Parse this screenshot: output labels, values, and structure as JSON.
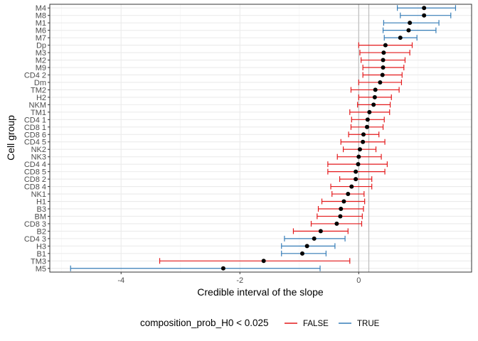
{
  "chart_data": {
    "type": "forest",
    "xlabel": "Credible interval of the slope",
    "ylabel": "Cell group",
    "xlim": [
      -5.2,
      1.9
    ],
    "x_ticks": [
      -4,
      -2,
      0
    ],
    "reference_lines": [
      0,
      0.17
    ],
    "grid": true,
    "legend": {
      "title": "composition_prob_H0 < 0.025",
      "position": "bottom",
      "entries": [
        {
          "label": "FALSE",
          "color": "#E41A1C"
        },
        {
          "label": "TRUE",
          "color": "#377EB8"
        }
      ]
    },
    "categories": [
      "M4",
      "M8",
      "M1",
      "M6",
      "M7",
      "Dp",
      "M3",
      "M2",
      "M9",
      "CD4 2",
      "Dm",
      "TM2",
      "H2",
      "NKM",
      "TM1",
      "CD4 1",
      "CD8 1",
      "CD8 6",
      "CD4 5",
      "NK2",
      "NK3",
      "CD4 4",
      "CD8 5",
      "CD8 2",
      "CD8 4",
      "NK1",
      "H1",
      "B3",
      "BM",
      "CD8 3",
      "B2",
      "CD4 3",
      "H3",
      "B1",
      "TM3",
      "M5"
    ],
    "points": [
      {
        "group": "M4",
        "estimate": 1.1,
        "lower": 0.65,
        "upper": 1.63,
        "significant": "TRUE"
      },
      {
        "group": "M8",
        "estimate": 1.1,
        "lower": 0.7,
        "upper": 1.55,
        "significant": "TRUE"
      },
      {
        "group": "M1",
        "estimate": 0.86,
        "lower": 0.42,
        "upper": 1.35,
        "significant": "TRUE"
      },
      {
        "group": "M6",
        "estimate": 0.84,
        "lower": 0.41,
        "upper": 1.3,
        "significant": "TRUE"
      },
      {
        "group": "M7",
        "estimate": 0.7,
        "lower": 0.43,
        "upper": 0.98,
        "significant": "TRUE"
      },
      {
        "group": "Dp",
        "estimate": 0.45,
        "lower": 0.0,
        "upper": 0.9,
        "significant": "FALSE"
      },
      {
        "group": "M3",
        "estimate": 0.42,
        "lower": 0.02,
        "upper": 0.86,
        "significant": "FALSE"
      },
      {
        "group": "M2",
        "estimate": 0.41,
        "lower": 0.04,
        "upper": 0.78,
        "significant": "FALSE"
      },
      {
        "group": "M9",
        "estimate": 0.41,
        "lower": 0.07,
        "upper": 0.76,
        "significant": "FALSE"
      },
      {
        "group": "CD4 2",
        "estimate": 0.4,
        "lower": 0.07,
        "upper": 0.73,
        "significant": "FALSE"
      },
      {
        "group": "Dm",
        "estimate": 0.36,
        "lower": 0.0,
        "upper": 0.72,
        "significant": "FALSE"
      },
      {
        "group": "TM2",
        "estimate": 0.28,
        "lower": -0.13,
        "upper": 0.68,
        "significant": "FALSE"
      },
      {
        "group": "H2",
        "estimate": 0.27,
        "lower": 0.0,
        "upper": 0.55,
        "significant": "FALSE"
      },
      {
        "group": "NKM",
        "estimate": 0.25,
        "lower": -0.02,
        "upper": 0.53,
        "significant": "FALSE"
      },
      {
        "group": "TM1",
        "estimate": 0.18,
        "lower": -0.15,
        "upper": 0.52,
        "significant": "FALSE"
      },
      {
        "group": "CD4 1",
        "estimate": 0.15,
        "lower": -0.12,
        "upper": 0.43,
        "significant": "FALSE"
      },
      {
        "group": "CD8 1",
        "estimate": 0.14,
        "lower": -0.13,
        "upper": 0.41,
        "significant": "FALSE"
      },
      {
        "group": "CD8 6",
        "estimate": 0.08,
        "lower": -0.17,
        "upper": 0.34,
        "significant": "FALSE"
      },
      {
        "group": "CD4 5",
        "estimate": 0.07,
        "lower": -0.3,
        "upper": 0.44,
        "significant": "FALSE"
      },
      {
        "group": "NK2",
        "estimate": 0.02,
        "lower": -0.26,
        "upper": 0.29,
        "significant": "FALSE"
      },
      {
        "group": "NK3",
        "estimate": 0.0,
        "lower": -0.36,
        "upper": 0.38,
        "significant": "FALSE"
      },
      {
        "group": "CD4 4",
        "estimate": -0.01,
        "lower": -0.52,
        "upper": 0.48,
        "significant": "FALSE"
      },
      {
        "group": "CD8 5",
        "estimate": -0.05,
        "lower": -0.52,
        "upper": 0.44,
        "significant": "FALSE"
      },
      {
        "group": "CD8 2",
        "estimate": -0.05,
        "lower": -0.32,
        "upper": 0.22,
        "significant": "FALSE"
      },
      {
        "group": "CD8 4",
        "estimate": -0.12,
        "lower": -0.47,
        "upper": 0.22,
        "significant": "FALSE"
      },
      {
        "group": "NK1",
        "estimate": -0.18,
        "lower": -0.45,
        "upper": 0.09,
        "significant": "FALSE"
      },
      {
        "group": "H1",
        "estimate": -0.25,
        "lower": -0.62,
        "upper": 0.1,
        "significant": "FALSE"
      },
      {
        "group": "B3",
        "estimate": -0.3,
        "lower": -0.68,
        "upper": 0.08,
        "significant": "FALSE"
      },
      {
        "group": "BM",
        "estimate": -0.31,
        "lower": -0.7,
        "upper": 0.06,
        "significant": "FALSE"
      },
      {
        "group": "CD8 3",
        "estimate": -0.37,
        "lower": -0.8,
        "upper": 0.05,
        "significant": "FALSE"
      },
      {
        "group": "B2",
        "estimate": -0.64,
        "lower": -1.1,
        "upper": -0.18,
        "significant": "FALSE"
      },
      {
        "group": "CD4 3",
        "estimate": -0.75,
        "lower": -1.25,
        "upper": -0.23,
        "significant": "TRUE"
      },
      {
        "group": "H3",
        "estimate": -0.87,
        "lower": -1.3,
        "upper": -0.4,
        "significant": "TRUE"
      },
      {
        "group": "B1",
        "estimate": -0.95,
        "lower": -1.3,
        "upper": -0.55,
        "significant": "TRUE"
      },
      {
        "group": "TM3",
        "estimate": -1.6,
        "lower": -3.35,
        "upper": -0.15,
        "significant": "FALSE"
      },
      {
        "group": "M5",
        "estimate": -2.28,
        "lower": -4.85,
        "upper": -0.65,
        "significant": "TRUE"
      }
    ]
  }
}
